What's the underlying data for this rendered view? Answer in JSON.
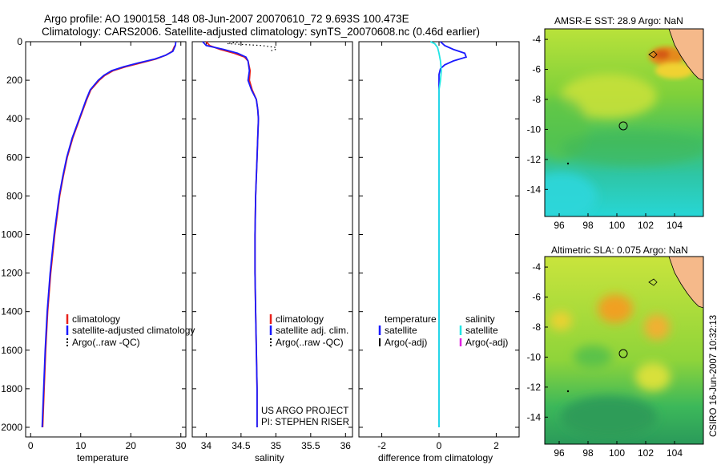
{
  "header": {
    "line1": "Argo profile: AO 1900158_148 08-Jun-2007 20070610_72 9.693S 100.473E",
    "line2": "Climatology: CARS2006. Satellite-adjusted climatology: synTS_20070608.nc (0.46d earlier)"
  },
  "side_note": "CSIRO 16-Jun-2007 10:32:13",
  "project_note": {
    "line1": "US ARGO PROJECT",
    "line2": "PI: STEPHEN RISER"
  },
  "colors": {
    "climatology": "#e8211b",
    "satellite": "#1a1aff",
    "argo": "#000000",
    "satellite_salinity": "#22e5e5",
    "argo_adj_salinity": "#e020e0",
    "land": "#f5b98a"
  },
  "chart_data": [
    {
      "type": "line",
      "panel": "temperature",
      "xlabel": "temperature",
      "ylabel": "",
      "xlim": [
        -1,
        31
      ],
      "ylim": [
        2050,
        0
      ],
      "xticks": [
        0,
        10,
        20,
        30
      ],
      "yticks": [
        0,
        200,
        400,
        600,
        800,
        1000,
        1200,
        1400,
        1600,
        1800,
        2000
      ],
      "y_reversed": true,
      "legend": [
        "climatology",
        "satellite-adjusted climatology",
        "Argo(..raw -QC)"
      ],
      "series": [
        {
          "name": "climatology",
          "color": "#e8211b",
          "depth": [
            20,
            50,
            70,
            90,
            110,
            130,
            150,
            175,
            200,
            250,
            300,
            400,
            500,
            600,
            700,
            800,
            1000,
            1200,
            1400,
            1600,
            1800,
            2000
          ],
          "values": [
            28.8,
            28.3,
            27.0,
            25.0,
            22.0,
            19.0,
            16.5,
            14.8,
            13.7,
            12.0,
            11.2,
            9.8,
            8.4,
            7.3,
            6.5,
            5.8,
            4.8,
            4.0,
            3.4,
            3.0,
            2.7,
            2.4
          ]
        },
        {
          "name": "satellite-adjusted climatology",
          "color": "#1a1aff",
          "depth": [
            0,
            20,
            50,
            70,
            90,
            110,
            130,
            150,
            175,
            200,
            250,
            300,
            400,
            500,
            600,
            700,
            800,
            1000,
            1200,
            1400,
            1600,
            1800,
            2000
          ],
          "values": [
            29.0,
            28.9,
            28.4,
            27.0,
            24.8,
            21.5,
            18.6,
            16.2,
            14.6,
            13.5,
            11.9,
            11.1,
            9.7,
            8.3,
            7.2,
            6.4,
            5.7,
            4.7,
            3.9,
            3.3,
            2.9,
            2.6,
            2.3
          ]
        }
      ]
    },
    {
      "type": "line",
      "panel": "salinity",
      "xlabel": "salinity",
      "xlim": [
        33.8,
        36.1
      ],
      "ylim": [
        2050,
        0
      ],
      "xticks": [
        34,
        34.5,
        35,
        35.5,
        36
      ],
      "y_reversed": true,
      "legend": [
        "climatology",
        "satellite adj. clim.",
        "Argo(..raw -QC)"
      ],
      "series": [
        {
          "name": "climatology",
          "color": "#e8211b",
          "depth": [
            0,
            20,
            40,
            60,
            80,
            100,
            150,
            200,
            250,
            300,
            350,
            400,
            500,
            600,
            800,
            1000,
            1200,
            1400,
            1600,
            1800,
            2000
          ],
          "values": [
            34.0,
            34.05,
            34.2,
            34.4,
            34.55,
            34.6,
            34.63,
            34.62,
            34.66,
            34.72,
            34.74,
            34.75,
            34.74,
            34.73,
            34.71,
            34.7,
            34.7,
            34.71,
            34.72,
            34.73,
            34.73
          ]
        },
        {
          "name": "satellite adj. clim.",
          "color": "#1a1aff",
          "depth": [
            0,
            20,
            40,
            60,
            80,
            100,
            150,
            200,
            250,
            300,
            350,
            400,
            500,
            600,
            800,
            1000,
            1200,
            1400,
            1600,
            1800,
            2000
          ],
          "values": [
            33.95,
            34.0,
            34.25,
            34.45,
            34.57,
            34.6,
            34.62,
            34.6,
            34.65,
            34.72,
            34.74,
            34.75,
            34.74,
            34.73,
            34.71,
            34.7,
            34.7,
            34.71,
            34.72,
            34.73,
            34.73
          ]
        },
        {
          "name": "Argo (dotted)",
          "color": "#000000",
          "dotted": true,
          "depth": [
            0,
            10,
            20,
            30,
            40,
            50
          ],
          "values": [
            34.5,
            34.3,
            34.8,
            35.0,
            35.0,
            34.9
          ]
        }
      ]
    },
    {
      "type": "line",
      "panel": "difference",
      "xlabel": "difference from climatology",
      "xlim": [
        -2.8,
        2.8
      ],
      "ylim": [
        2050,
        0
      ],
      "xticks": [
        -2,
        0,
        2
      ],
      "y_reversed": true,
      "legend_left": [
        "temperature",
        "satellite",
        "Argo(-adj)"
      ],
      "legend_right": [
        "salinity",
        "satellite",
        "Argo(-adj)"
      ],
      "series": [
        {
          "name": "temperature satellite",
          "color": "#1a1aff",
          "depth": [
            0,
            20,
            40,
            60,
            80,
            100,
            120,
            140,
            170,
            200,
            250,
            300,
            500,
            1000,
            1500,
            2000
          ],
          "values": [
            0.05,
            0.2,
            0.5,
            0.9,
            0.95,
            0.5,
            0.2,
            0.05,
            0.0,
            0.0,
            0.0,
            0.0,
            0.0,
            0.0,
            0.0,
            0.0
          ]
        },
        {
          "name": "salinity satellite",
          "color": "#22e5e5",
          "depth": [
            0,
            10,
            30,
            60,
            100,
            150,
            200,
            250,
            300,
            500,
            1000,
            1500,
            2000
          ],
          "values": [
            -0.3,
            -0.15,
            -0.05,
            0.0,
            0.05,
            0.08,
            0.05,
            0.0,
            0.0,
            0.0,
            0.0,
            0.0,
            0.0
          ]
        }
      ]
    },
    {
      "type": "heatmap",
      "panel": "sst_map",
      "title": "AMSR-E SST: 28.9  Argo: NaN",
      "xlim": [
        95,
        106
      ],
      "ylim": [
        -15.8,
        -3.3
      ],
      "xticks": [
        96,
        98,
        100,
        102,
        104
      ],
      "yticks": [
        -4,
        -6,
        -8,
        -10,
        -12,
        -14
      ],
      "float_position": [
        100.473,
        -9.693
      ]
    },
    {
      "type": "heatmap",
      "panel": "sla_map",
      "title": "Altimetric SLA: 0.075  Argo: NaN",
      "xlim": [
        95,
        106
      ],
      "ylim": [
        -15.8,
        -3.3
      ],
      "xticks": [
        96,
        98,
        100,
        102,
        104
      ],
      "yticks": [
        -4,
        -6,
        -8,
        -10,
        -12,
        -14
      ],
      "float_position": [
        100.473,
        -9.693
      ]
    }
  ]
}
